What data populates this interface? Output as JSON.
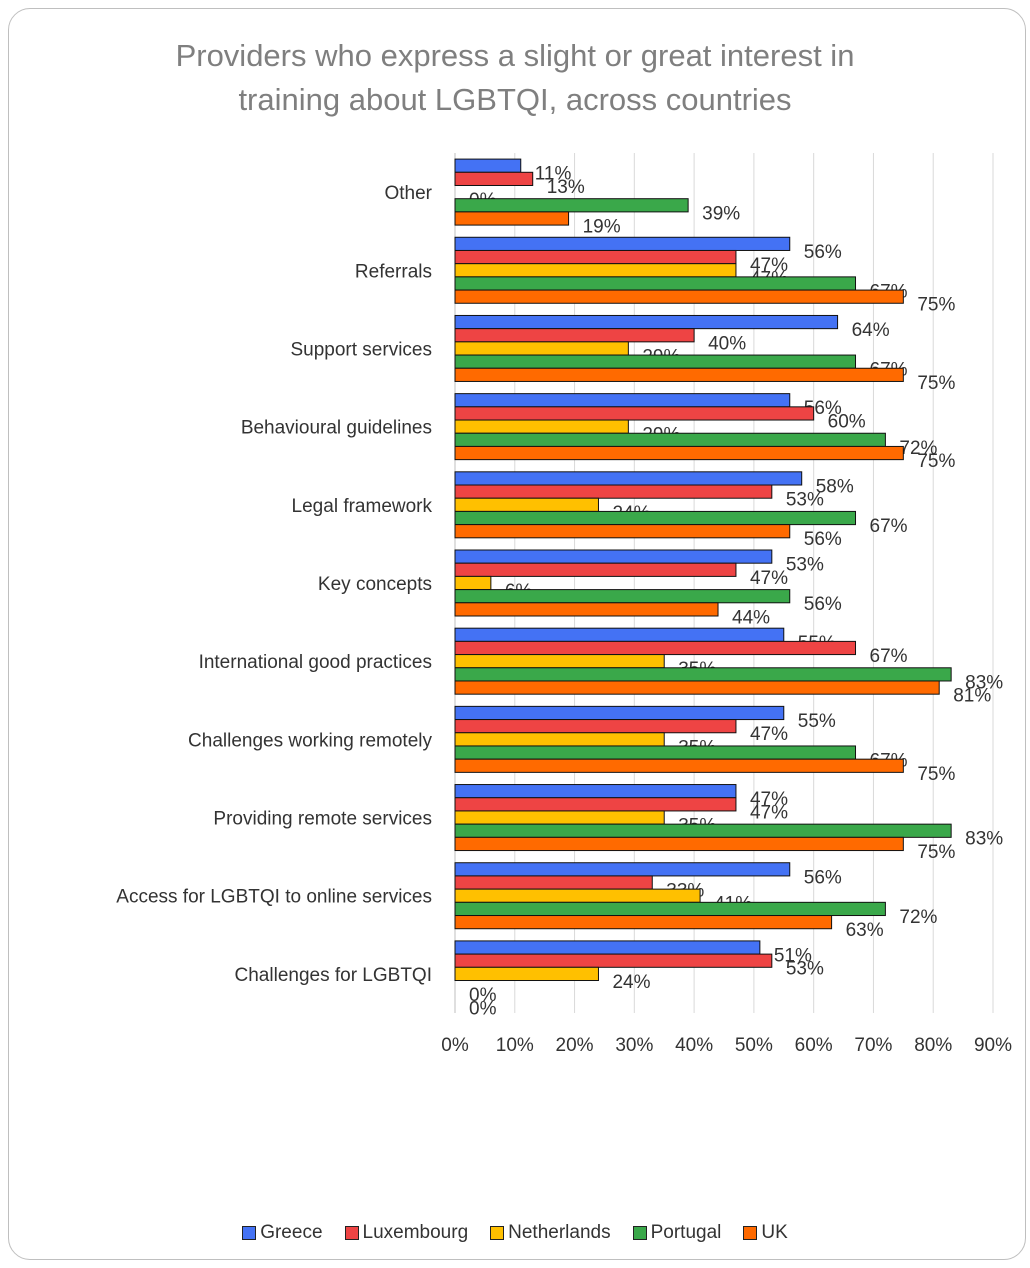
{
  "chart_data": {
    "type": "bar",
    "orientation": "horizontal",
    "title_lines": [
      "Providers who express a slight or great interest in",
      "training about LGBTQI, across countries"
    ],
    "categories": [
      "Other",
      "Referrals",
      "Support services",
      "Behavioural guidelines",
      "Legal framework",
      "Key concepts",
      "International good practices",
      "Challenges working remotely",
      "Providing remote services",
      "Access for LGBTQI to online services",
      "Challenges for LGBTQI"
    ],
    "series": [
      {
        "name": "Greece",
        "color": "#4472f4",
        "values": [
          11,
          56,
          64,
          56,
          58,
          53,
          55,
          55,
          47,
          56,
          51
        ]
      },
      {
        "name": "Luxembourg",
        "color": "#ee4444",
        "values": [
          13,
          47,
          40,
          60,
          53,
          47,
          67,
          47,
          47,
          33,
          53
        ]
      },
      {
        "name": "Netherlands",
        "color": "#ffc000",
        "values": [
          0,
          47,
          29,
          29,
          24,
          6,
          35,
          35,
          35,
          41,
          24
        ]
      },
      {
        "name": "Portugal",
        "color": "#3aa84a",
        "values": [
          39,
          67,
          67,
          72,
          67,
          56,
          83,
          67,
          83,
          72,
          0
        ]
      },
      {
        "name": "UK",
        "color": "#ff6a00",
        "values": [
          19,
          75,
          75,
          75,
          56,
          44,
          81,
          75,
          75,
          63,
          0
        ]
      }
    ],
    "value_suffix": "%",
    "xlim": [
      0,
      90
    ],
    "xticks": [
      "0%",
      "10%",
      "20%",
      "30%",
      "40%",
      "50%",
      "60%",
      "70%",
      "80%",
      "90%"
    ],
    "grid": true,
    "legend_position": "bottom"
  }
}
